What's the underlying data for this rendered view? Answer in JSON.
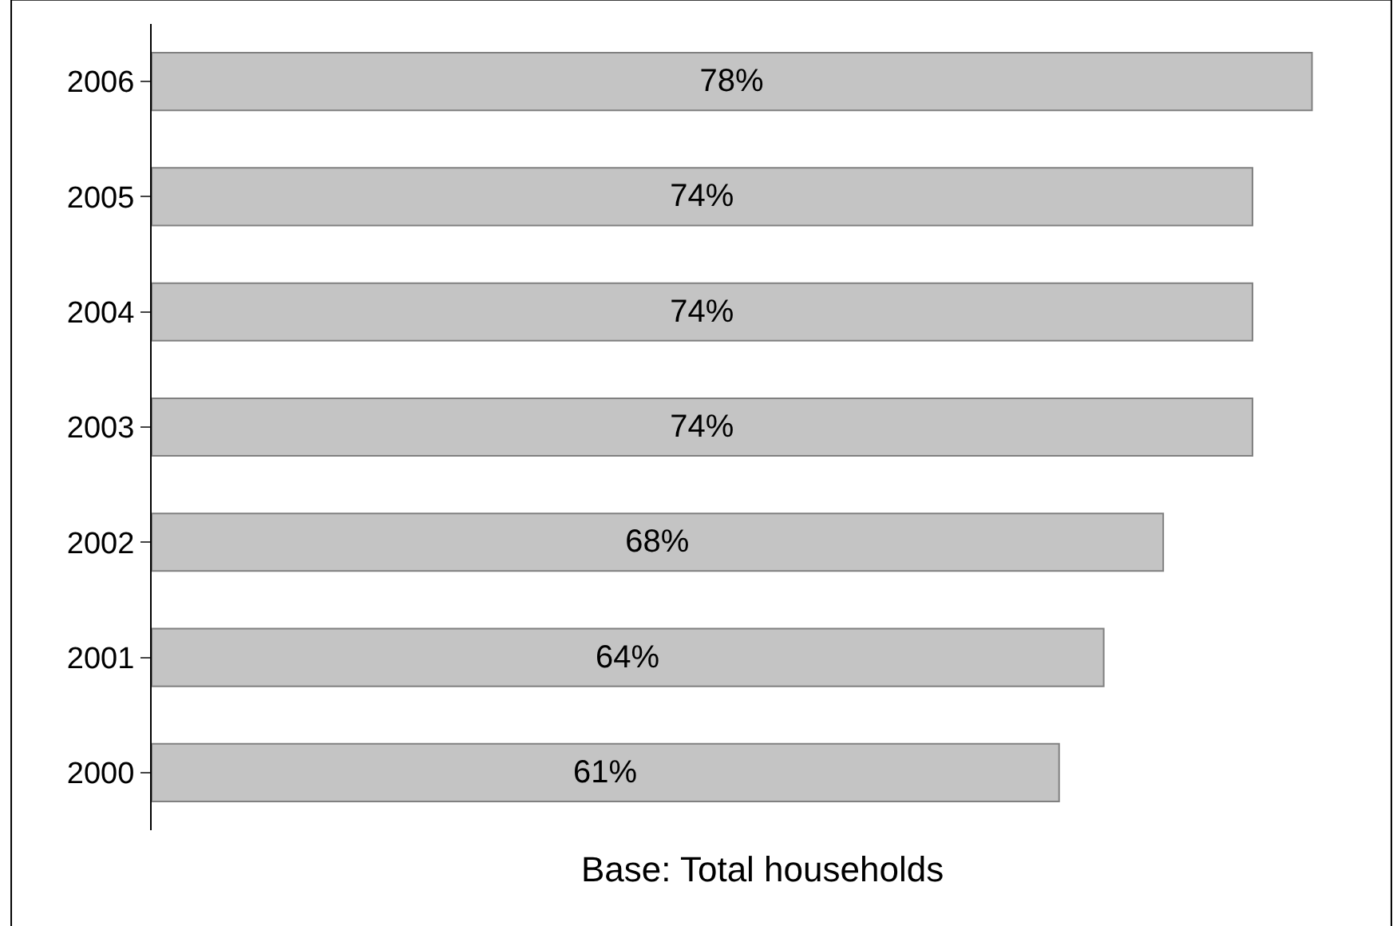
{
  "chart_data": {
    "type": "bar",
    "orientation": "horizontal",
    "categories": [
      "2006",
      "2005",
      "2004",
      "2003",
      "2002",
      "2001",
      "2000"
    ],
    "values": [
      78,
      74,
      74,
      74,
      68,
      64,
      61
    ],
    "value_labels": [
      "78%",
      "74%",
      "74%",
      "74%",
      "68%",
      "64%",
      "61%"
    ],
    "color": "#c4c4c4",
    "tick_labels": "y",
    "legend": false,
    "annotations": [
      "Base: Total households"
    ]
  }
}
